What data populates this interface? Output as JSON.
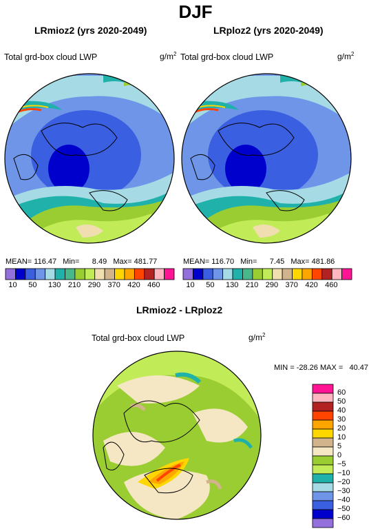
{
  "title": "DJF",
  "panels": [
    {
      "title": "LRmioz2 (yrs 2020-2049)",
      "variable": "Total grd-box cloud LWP",
      "units": "g/m",
      "units_sup": "2",
      "stats": {
        "mean_label": "MEAN=",
        "mean": "116.47",
        "min_label": "Min=",
        "min": "8.49",
        "max_label": "Max=",
        "max": "481.77"
      }
    },
    {
      "title": "LRploz2 (yrs 2020-2049)",
      "variable": "Total grd-box cloud LWP",
      "units": "g/m",
      "units_sup": "2",
      "stats": {
        "mean_label": "MEAN=",
        "mean": "116.70",
        "min_label": "Min=",
        "min": "7.45",
        "max_label": "Max=",
        "max": "481.86"
      }
    }
  ],
  "shared_colorbar": {
    "colors": [
      "#9370db",
      "#0000cd",
      "#3a5fe0",
      "#6e95e8",
      "#a6dbe6",
      "#20b2aa",
      "#48b88a",
      "#9acd32",
      "#c1ec58",
      "#f0deb0",
      "#d2b48c",
      "#ffd700",
      "#ffa500",
      "#ff4500",
      "#b22222",
      "#ffb6c1",
      "#ff1493"
    ],
    "labels": [
      "10",
      "50",
      "130",
      "210",
      "290",
      "370",
      "420",
      "460"
    ],
    "label_rows": [
      "10",
      "50",
      "130",
      "210",
      "290",
      "370",
      "420",
      "460"
    ]
  },
  "difference": {
    "title": "LRmioz2 - LRploz2",
    "variable": "Total grd-box cloud LWP",
    "units": "g/m",
    "units_sup": "2",
    "stats": {
      "min_label": "MIN =",
      "min": "-28.26",
      "max_label": "MAX =",
      "max": "40.47"
    },
    "colorbar": {
      "colors": [
        "#ff1493",
        "#ffb6c1",
        "#b22222",
        "#ff4500",
        "#ffa500",
        "#ffd700",
        "#d2b48c",
        "#f5e6c4",
        "#9acd32",
        "#c1ec58",
        "#20b2aa",
        "#a6dbe6",
        "#6e95e8",
        "#3a5fe0",
        "#0000cd",
        "#9370db"
      ],
      "labels": [
        "60",
        "50",
        "40",
        "30",
        "20",
        "10",
        "5",
        "0",
        "−5",
        "−10",
        "−20",
        "−30",
        "−40",
        "−50",
        "−60"
      ]
    }
  }
}
